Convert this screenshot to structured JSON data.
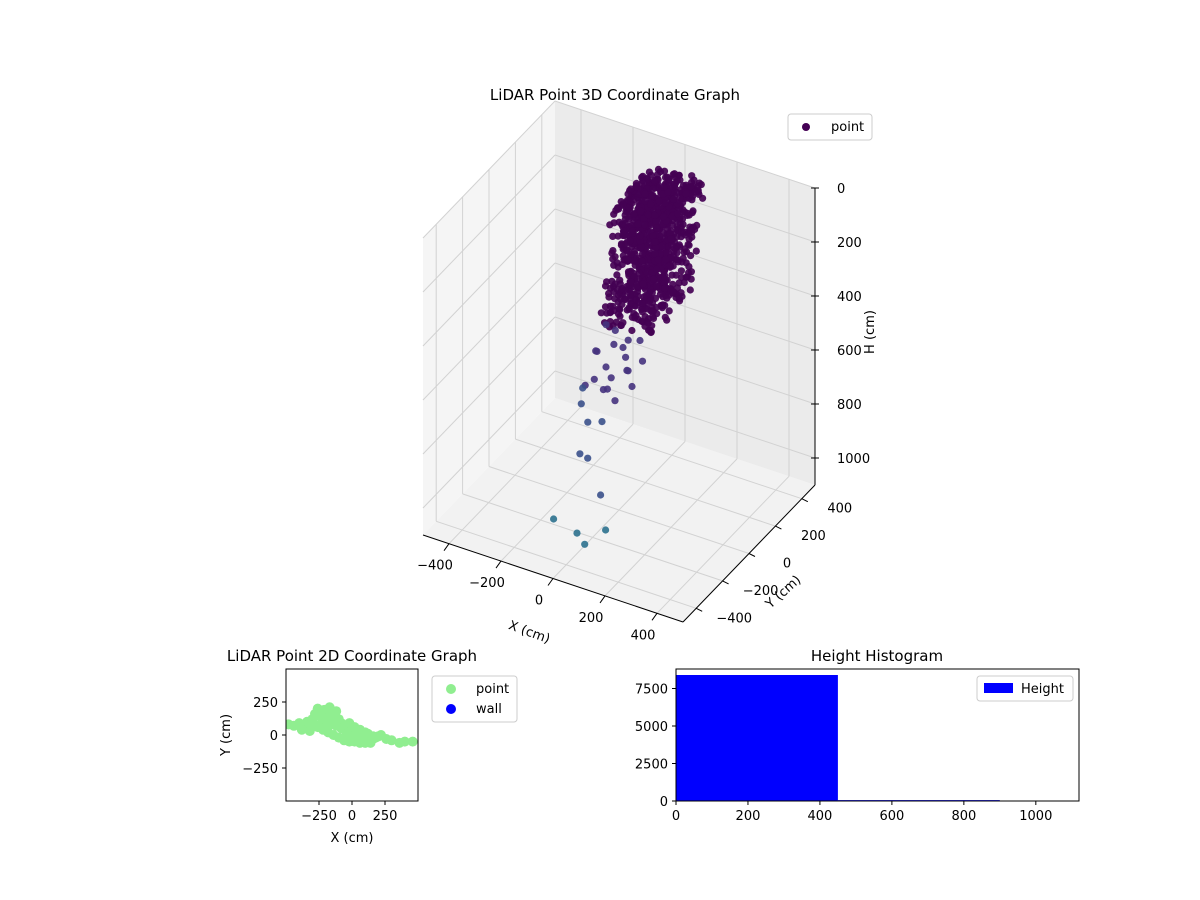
{
  "chart_data": [
    {
      "type": "scatter3d",
      "title": "LiDAR Point 3D Coordinate Graph",
      "xlabel": "X (cm)",
      "ylabel": "Y (cm)",
      "zlabel": "H (cm)",
      "xlim": [
        -500,
        500
      ],
      "ylim": [
        -500,
        500
      ],
      "zlim": [
        1100,
        0
      ],
      "xticks": [
        -400,
        -200,
        0,
        200,
        400
      ],
      "yticks": [
        -400,
        -200,
        0,
        200,
        400
      ],
      "zticks": [
        0,
        200,
        400,
        600,
        800,
        1000
      ],
      "grid": true,
      "legend": {
        "position": "top-right",
        "entries": [
          "point"
        ]
      },
      "colors": {
        "point": "#440154",
        "mid": "#3b518b",
        "low": "#2c718e",
        "pane": "#f2f2f2",
        "grid": "#d2d2d2"
      },
      "series": [
        {
          "name": "point",
          "cluster": {
            "count": 8400,
            "h_range": [
              50,
              450
            ]
          },
          "sparse_points": [
            [
              -80,
              60,
              470
            ],
            [
              -60,
              90,
              500
            ],
            [
              -40,
              40,
              520
            ],
            [
              -20,
              70,
              540
            ],
            [
              0,
              50,
              560
            ],
            [
              20,
              30,
              480
            ],
            [
              40,
              80,
              500
            ],
            [
              -100,
              30,
              560
            ],
            [
              -120,
              60,
              580
            ],
            [
              -60,
              20,
              600
            ],
            [
              -30,
              0,
              620
            ],
            [
              10,
              40,
              600
            ],
            [
              30,
              10,
              580
            ],
            [
              -90,
              -10,
              640
            ],
            [
              -50,
              -20,
              660
            ],
            [
              -130,
              0,
              680
            ],
            [
              -70,
              50,
              700
            ],
            [
              0,
              -30,
              680
            ],
            [
              40,
              20,
              640
            ],
            [
              60,
              60,
              560
            ],
            [
              -160,
              40,
              720
            ],
            [
              -150,
              10,
              760
            ],
            [
              -110,
              -20,
              800
            ],
            [
              -40,
              -50,
              760
            ],
            [
              -120,
              -60,
              900
            ],
            [
              -100,
              -40,
              920
            ],
            [
              -20,
              -100,
              1000
            ],
            [
              -150,
              -200,
              1080
            ],
            [
              -50,
              -220,
              1090
            ],
            [
              0,
              -260,
              1095
            ],
            [
              40,
              -180,
              1070
            ]
          ]
        }
      ]
    },
    {
      "type": "scatter",
      "title": "LiDAR Point 2D Coordinate Graph",
      "xlabel": "X (cm)",
      "ylabel": "Y (cm)",
      "xlim": [
        -500,
        500
      ],
      "ylim": [
        -500,
        500
      ],
      "xticks": [
        -250,
        0,
        250
      ],
      "xticklabels": [
        "−250",
        "0",
        "250"
      ],
      "yticks": [
        -250,
        0,
        250
      ],
      "yticklabels": [
        "−250",
        "0",
        "250"
      ],
      "legend": {
        "position": "outside-right",
        "entries": [
          "point",
          "wall"
        ]
      },
      "series": [
        {
          "name": "point",
          "color": "#90ee90",
          "points": [
            [
              -480,
              80
            ],
            [
              -440,
              70
            ],
            [
              -400,
              90
            ],
            [
              -360,
              60
            ],
            [
              -340,
              100
            ],
            [
              -300,
              80
            ],
            [
              -280,
              160
            ],
            [
              -260,
              200
            ],
            [
              -240,
              140
            ],
            [
              -210,
              190
            ],
            [
              -200,
              110
            ],
            [
              -170,
              210
            ],
            [
              -150,
              150
            ],
            [
              -120,
              180
            ],
            [
              -100,
              120
            ],
            [
              -80,
              90
            ],
            [
              -60,
              60
            ],
            [
              -40,
              40
            ],
            [
              -20,
              20
            ],
            [
              0,
              10
            ],
            [
              20,
              0
            ],
            [
              40,
              -10
            ],
            [
              60,
              -20
            ],
            [
              80,
              -30
            ],
            [
              100,
              -40
            ],
            [
              120,
              -50
            ],
            [
              140,
              -40
            ],
            [
              160,
              -30
            ],
            [
              180,
              -20
            ],
            [
              200,
              -10
            ],
            [
              220,
              0
            ],
            [
              260,
              -30
            ],
            [
              300,
              -40
            ],
            [
              360,
              -60
            ],
            [
              400,
              -50
            ],
            [
              460,
              -50
            ],
            [
              -380,
              40
            ],
            [
              -320,
              30
            ],
            [
              -260,
              60
            ],
            [
              -220,
              40
            ],
            [
              -180,
              20
            ],
            [
              -140,
              0
            ],
            [
              -100,
              -20
            ],
            [
              -60,
              -40
            ],
            [
              -20,
              -50
            ],
            [
              20,
              -50
            ],
            [
              60,
              -60
            ],
            [
              100,
              -60
            ],
            [
              140,
              -60
            ],
            [
              -240,
              80
            ],
            [
              -200,
              60
            ],
            [
              -160,
              80
            ],
            [
              -120,
              70
            ],
            [
              -80,
              50
            ],
            [
              -40,
              10
            ],
            [
              0,
              -20
            ],
            [
              40,
              30
            ],
            [
              80,
              20
            ],
            [
              120,
              10
            ],
            [
              160,
              -10
            ],
            [
              -300,
              120
            ],
            [
              -180,
              130
            ],
            [
              -140,
              100
            ],
            [
              -20,
              90
            ],
            [
              20,
              60
            ],
            [
              60,
              40
            ],
            [
              100,
              20
            ]
          ]
        },
        {
          "name": "wall",
          "color": "#0000ff",
          "points": []
        }
      ]
    },
    {
      "type": "bar",
      "title": "Height Histogram",
      "xlim": [
        0,
        1120
      ],
      "ylim": [
        0,
        8800
      ],
      "xticks": [
        0,
        200,
        400,
        600,
        800,
        1000
      ],
      "yticks": [
        0,
        2500,
        5000,
        7500
      ],
      "legend": {
        "position": "top-right",
        "entries": [
          "Height"
        ]
      },
      "series": [
        {
          "name": "Height",
          "color": "#0000ff",
          "bins": [
            {
              "x0": 0,
              "x1": 450,
              "count": 8400
            },
            {
              "x0": 450,
              "x1": 900,
              "count": 60
            }
          ]
        }
      ]
    }
  ]
}
